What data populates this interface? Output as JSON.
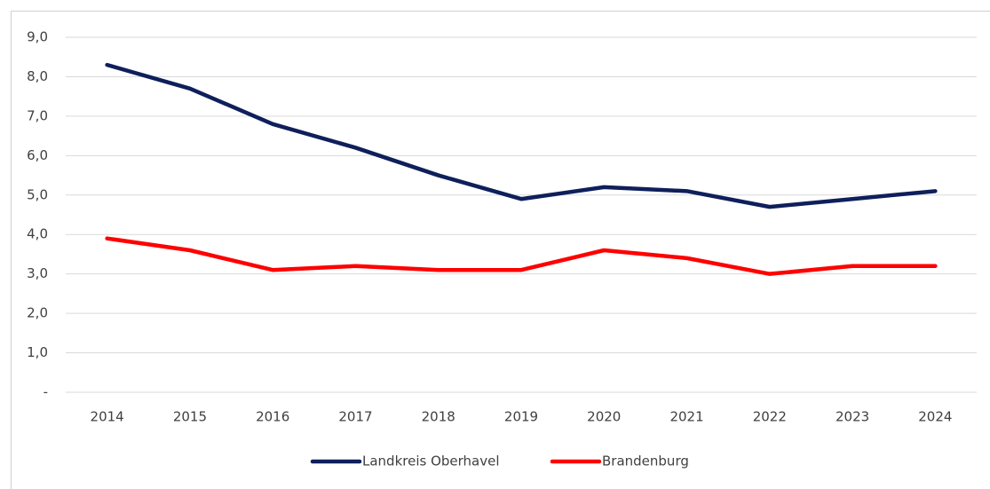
{
  "chart_data": {
    "type": "line",
    "categories": [
      "2014",
      "2015",
      "2016",
      "2017",
      "2018",
      "2019",
      "2020",
      "2021",
      "2022",
      "2023",
      "2024"
    ],
    "series": [
      {
        "name": "Landkreis Oberhavel",
        "color": "#0e1f5b",
        "values": [
          8.3,
          7.7,
          6.8,
          6.2,
          5.5,
          4.9,
          5.2,
          5.1,
          4.7,
          4.9,
          5.1
        ]
      },
      {
        "name": "Brandenburg",
        "color": "#ff0000",
        "values": [
          3.9,
          3.6,
          3.1,
          3.2,
          3.1,
          3.1,
          3.6,
          3.4,
          3.0,
          3.2,
          3.2
        ]
      }
    ],
    "ylim": [
      0,
      9
    ],
    "yticks": [
      {
        "value": 0,
        "label": "-"
      },
      {
        "value": 1,
        "label": "1,0"
      },
      {
        "value": 2,
        "label": "2,0"
      },
      {
        "value": 3,
        "label": "3,0"
      },
      {
        "value": 4,
        "label": "4,0"
      },
      {
        "value": 5,
        "label": "5,0"
      },
      {
        "value": 6,
        "label": "6,0"
      },
      {
        "value": 7,
        "label": "7,0"
      },
      {
        "value": 8,
        "label": "8,0"
      },
      {
        "value": 9,
        "label": "9,0"
      }
    ],
    "grid": true,
    "legend": "bottom"
  }
}
